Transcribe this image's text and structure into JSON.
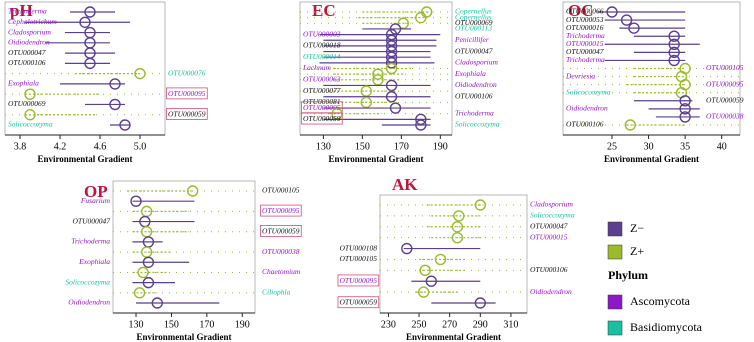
{
  "chart_data": [
    {
      "type": "dot-range",
      "title": "pH",
      "xlabel": "Environmental Gradient",
      "xlim": [
        3.65,
        5.25
      ],
      "xticks": [
        3.8,
        4.2,
        4.6,
        {
          "value": 5.0,
          "label": "5.0"
        }
      ],
      "rows": [
        {
          "taxon": "Trichoderma",
          "phylum": "Ascomycota",
          "side": "left",
          "group": "Z−",
          "value": 4.5,
          "low": 4.3,
          "high": 4.75
        },
        {
          "taxon": "Cephalotrichum",
          "phylum": "Ascomycota",
          "side": "left",
          "group": "Z−",
          "value": 4.45,
          "low": 3.85,
          "high": 4.9
        },
        {
          "taxon": "Cladosporium",
          "phylum": "Ascomycota",
          "side": "left",
          "group": "Z−",
          "value": 4.5,
          "low": 4.25,
          "high": 4.7
        },
        {
          "taxon": "Oidiodendron",
          "phylum": "Ascomycota",
          "side": "left",
          "group": "Z−",
          "value": 4.5,
          "low": 4.05,
          "high": 4.7
        },
        {
          "taxon": "OTU000047",
          "phylum": null,
          "side": "left",
          "group": "Z−",
          "value": 4.5,
          "low": 4.25,
          "high": 4.75
        },
        {
          "taxon": "OTU000106",
          "phylum": null,
          "side": "left",
          "group": "Z−",
          "value": 4.5,
          "low": 4.25,
          "high": 4.7
        },
        {
          "taxon": "OTU000076",
          "phylum": "Basidiomycota",
          "side": "right",
          "group": "Z+",
          "value": 5.0,
          "low": 4.35,
          "high": 5.0
        },
        {
          "taxon": "Exophiala",
          "phylum": "Ascomycota",
          "side": "left",
          "group": "Z−",
          "value": 4.75,
          "low": 4.2,
          "high": 4.85
        },
        {
          "taxon": "OTU000095",
          "phylum": "Ascomycota",
          "side": "right",
          "group": "Z+",
          "value": 3.9,
          "low": 3.85,
          "high": 4.6,
          "boxed": true
        },
        {
          "taxon": "OTU000069",
          "phylum": null,
          "side": "left",
          "group": "Z−",
          "value": 4.75,
          "low": 4.45,
          "high": 4.85
        },
        {
          "taxon": "OTU000059",
          "phylum": null,
          "side": "right",
          "group": "Z+",
          "value": 3.9,
          "low": 3.85,
          "high": 4.55,
          "boxed": true
        },
        {
          "taxon": "Solicoccozyma",
          "phylum": "Basidiomycota",
          "side": "left",
          "group": "Z−",
          "value": 4.85,
          "low": 4.7,
          "high": 4.9
        }
      ]
    },
    {
      "type": "dot-range",
      "title": "EC",
      "xlabel": "Environmental Gradient",
      "xlim": [
        118,
        196
      ],
      "xticks": [
        130,
        150,
        170,
        190
      ],
      "rows": [
        {
          "taxon": "Copernellus",
          "phylum": "Basidiomycota",
          "side": "right",
          "group": "Z+",
          "value": 183,
          "low": 150,
          "high": 185
        },
        {
          "taxon": "Copernellus",
          "phylum": "Basidiomycota",
          "side": "right",
          "group": "Z+",
          "value": 180,
          "low": 148,
          "high": 183
        },
        {
          "taxon": "OTU000069",
          "phylum": null,
          "side": "right",
          "group": "Z+",
          "value": 171,
          "low": 150,
          "high": 175
        },
        {
          "taxon": "OTU000113",
          "phylum": "Basidiomycota",
          "side": "right",
          "group": "Z−",
          "value": 167,
          "low": 150,
          "high": 175
        },
        {
          "taxon": "OTU000003",
          "phylum": "Ascomycota",
          "side": "left",
          "group": "Z−",
          "value": 165,
          "low": 128,
          "high": 190
        },
        {
          "taxon": "Penicillifer",
          "phylum": "Ascomycota",
          "side": "right",
          "group": "Z−",
          "value": 165,
          "low": 130,
          "high": 188
        },
        {
          "taxon": "OTU000018",
          "phylum": null,
          "side": "left",
          "group": "Z−",
          "value": 165,
          "low": 130,
          "high": 188
        },
        {
          "taxon": "OTU000047",
          "phylum": null,
          "side": "right",
          "group": "Z−",
          "value": 165,
          "low": 130,
          "high": 185
        },
        {
          "taxon": "OTU000014",
          "phylum": "Basidiomycota",
          "side": "left",
          "group": "Z−",
          "value": 165,
          "low": 130,
          "high": 185
        },
        {
          "taxon": "Cladosporium",
          "phylum": "Ascomycota",
          "side": "right",
          "group": "Z−",
          "value": 165,
          "low": 128,
          "high": 187
        },
        {
          "taxon": "Lachnum",
          "phylum": "Ascomycota",
          "side": "left",
          "group": "Z+",
          "value": 165,
          "low": 135,
          "high": 175
        },
        {
          "taxon": "Exophiala",
          "phylum": "Ascomycota",
          "side": "right",
          "group": "Z+",
          "value": 158,
          "low": 135,
          "high": 172
        },
        {
          "taxon": "OTU000063",
          "phylum": "Ascomycota",
          "side": "left",
          "group": "Z+",
          "value": 158,
          "low": 135,
          "high": 170
        },
        {
          "taxon": "Oidiodendron",
          "phylum": "Ascomycota",
          "side": "right",
          "group": "Z−",
          "value": 165,
          "low": 130,
          "high": 185
        },
        {
          "taxon": "OTU000077",
          "phylum": null,
          "side": "left",
          "group": "Z+",
          "value": 152,
          "low": 133,
          "high": 167
        },
        {
          "taxon": "OTU000106",
          "phylum": null,
          "side": "right",
          "group": "Z−",
          "value": 165,
          "low": 130,
          "high": 185
        },
        {
          "taxon": "OTU000081",
          "phylum": null,
          "side": "left",
          "group": "Z+",
          "value": 152,
          "low": 133,
          "high": 165
        },
        {
          "taxon": "OTU000095",
          "phylum": "Ascomycota",
          "side": "left",
          "group": "Z−",
          "value": 167,
          "low": 130,
          "high": 185,
          "boxed": true
        },
        {
          "taxon": "Trichoderma",
          "phylum": "Ascomycota",
          "side": "right",
          "group": "Z+",
          "value": 137,
          "low": 133,
          "high": 160
        },
        {
          "taxon": "OTU000059",
          "phylum": null,
          "side": "left",
          "group": "Z−",
          "value": 180,
          "low": 130,
          "high": 185,
          "boxed": true
        },
        {
          "taxon": "Solicoccozyma",
          "phylum": "Basidiomycota",
          "side": "right",
          "group": "Z−",
          "value": 180,
          "low": 160,
          "high": 185
        }
      ]
    },
    {
      "type": "dot-range",
      "title": "OC",
      "xlabel": "Environmental Gradient",
      "xlim": [
        18.3,
        42.5
      ],
      "xticks": [
        25,
        30,
        35,
        40
      ],
      "rows": [
        {
          "taxon": "OTU000066",
          "phylum": null,
          "side": "left",
          "group": "Z−",
          "value": 25,
          "low": 23,
          "high": 35
        },
        {
          "taxon": "OTU000053",
          "phylum": null,
          "side": "left",
          "group": "Z−",
          "value": 27,
          "low": 24,
          "high": 35
        },
        {
          "taxon": "OTU000016",
          "phylum": null,
          "side": "left",
          "group": "Z−",
          "value": 28,
          "low": 26,
          "high": 35
        },
        {
          "taxon": "Trichoderma",
          "phylum": "Ascomycota",
          "side": "left",
          "group": "Z−",
          "value": 33.5,
          "low": 28,
          "high": 35
        },
        {
          "taxon": "OTU000015",
          "phylum": "Ascomycota",
          "side": "left",
          "group": "Z−",
          "value": 33.5,
          "low": 24,
          "high": 37
        },
        {
          "taxon": "OTU000047",
          "phylum": null,
          "side": "left",
          "group": "Z−",
          "value": 33.5,
          "low": 28,
          "high": 35
        },
        {
          "taxon": "Trichoderma",
          "phylum": "Ascomycota",
          "side": "left",
          "group": "Z−",
          "value": 33.5,
          "low": 24,
          "high": 35
        },
        {
          "taxon": "OTU000105",
          "phylum": "Ascomycota",
          "side": "right",
          "group": "Z+",
          "value": 35,
          "low": 28,
          "high": 35
        },
        {
          "taxon": "Devriesia",
          "phylum": "Ascomycota",
          "side": "left",
          "group": "Z+",
          "value": 34.5,
          "low": 28,
          "high": 35
        },
        {
          "taxon": "OTU000095",
          "phylum": "Ascomycota",
          "side": "right",
          "group": "Z+",
          "value": 35,
          "low": 27,
          "high": 35
        },
        {
          "taxon": "Solicoccozyma",
          "phylum": "Basidiomycota",
          "side": "left",
          "group": "Z+",
          "value": 34.5,
          "low": 28,
          "high": 35
        },
        {
          "taxon": "OTU000059",
          "phylum": null,
          "side": "right",
          "group": "Z−",
          "value": 35,
          "low": 28,
          "high": 36
        },
        {
          "taxon": "Oidiodendron",
          "phylum": "Ascomycota",
          "side": "left",
          "group": "Z−",
          "value": 35,
          "low": 30,
          "high": 37
        },
        {
          "taxon": "OTU000038",
          "phylum": "Ascomycota",
          "side": "right",
          "group": "Z−",
          "value": 35,
          "low": 31,
          "high": 37
        },
        {
          "taxon": "OTU000106",
          "phylum": null,
          "side": "left",
          "group": "Z+",
          "value": 27.5,
          "low": 27,
          "high": 35
        }
      ]
    },
    {
      "type": "dot-range",
      "title": "OP",
      "xlabel": "Environmental Gradient",
      "xlim": [
        117,
        197.2
      ],
      "xticks": [
        130,
        150,
        170,
        190
      ],
      "rows": [
        {
          "taxon": "OTU000105",
          "phylum": null,
          "side": "right",
          "group": "Z+",
          "value": 162,
          "low": 125,
          "high": 162
        },
        {
          "taxon": "Fusarium",
          "phylum": "Ascomycota",
          "side": "left",
          "group": "Z−",
          "value": 130,
          "low": 128,
          "high": 163
        },
        {
          "taxon": "OTU000095",
          "phylum": "Ascomycota",
          "side": "right",
          "group": "Z+",
          "value": 136,
          "low": 128,
          "high": 160,
          "boxed": true
        },
        {
          "taxon": "OTU000047",
          "phylum": null,
          "side": "left",
          "group": "Z−",
          "value": 135,
          "low": 128,
          "high": 163
        },
        {
          "taxon": "OTU000059",
          "phylum": null,
          "side": "right",
          "group": "Z+",
          "value": 136,
          "low": 128,
          "high": 160,
          "boxed": true
        },
        {
          "taxon": "Trichoderma",
          "phylum": "Ascomycota",
          "side": "left",
          "group": "Z−",
          "value": 137,
          "low": 128,
          "high": 145
        },
        {
          "taxon": "OTU000038",
          "phylum": "Ascomycota",
          "side": "right",
          "group": "Z+",
          "value": 136,
          "low": 128,
          "high": 150
        },
        {
          "taxon": "Exophiala",
          "phylum": "Ascomycota",
          "side": "left",
          "group": "Z−",
          "value": 137,
          "low": 128,
          "high": 160
        },
        {
          "taxon": "Chaetomium",
          "phylum": "Ascomycota",
          "side": "right",
          "group": "Z+",
          "value": 134,
          "low": 128,
          "high": 148
        },
        {
          "taxon": "Solicoccozyma",
          "phylum": "Basidiomycota",
          "side": "left",
          "group": "Z−",
          "value": 137,
          "low": 128,
          "high": 152
        },
        {
          "taxon": "Ciliophla",
          "phylum": "Basidiomycota",
          "side": "right",
          "group": "Z+",
          "value": 132,
          "low": 128,
          "high": 142
        },
        {
          "taxon": "Oidiodendron",
          "phylum": "Ascomycota",
          "side": "left",
          "group": "Z−",
          "value": 142,
          "low": 130,
          "high": 177
        }
      ]
    },
    {
      "type": "dot-range",
      "title": "AK",
      "xlabel": "Environmental Gradient",
      "xlim": [
        224.5,
        320.5
      ],
      "xticks": [
        230,
        250,
        270,
        290,
        310
      ],
      "rows": [
        {
          "taxon": "Cladosporium",
          "phylum": "Ascomycota",
          "side": "right",
          "group": "Z+",
          "value": 290,
          "low": 255,
          "high": 292
        },
        {
          "taxon": "Solicoccozyma",
          "phylum": "Basidiomycota",
          "side": "right",
          "group": "Z+",
          "value": 276,
          "low": 258,
          "high": 290
        },
        {
          "taxon": "OTU000047",
          "phylum": null,
          "side": "right",
          "group": "Z+",
          "value": 275,
          "low": 255,
          "high": 290
        },
        {
          "taxon": "OTU000015",
          "phylum": "Ascomycota",
          "side": "right",
          "group": "Z+",
          "value": 275,
          "low": 258,
          "high": 292
        },
        {
          "taxon": "OTU000108",
          "phylum": null,
          "side": "left",
          "group": "Z−",
          "value": 242,
          "low": 240,
          "high": 290
        },
        {
          "taxon": "OTU000105",
          "phylum": null,
          "side": "left",
          "group": "Z+",
          "value": 264,
          "low": 250,
          "high": 280
        },
        {
          "taxon": "OTU000106",
          "phylum": null,
          "side": "right",
          "group": "Z+",
          "value": 254,
          "low": 250,
          "high": 280
        },
        {
          "taxon": "OTU000095",
          "phylum": "Ascomycota",
          "side": "left",
          "group": "Z−",
          "value": 258,
          "low": 245,
          "high": 290,
          "boxed": true
        },
        {
          "taxon": "Oidiodendron",
          "phylum": "Ascomycota",
          "side": "right",
          "group": "Z+",
          "value": 253,
          "low": 248,
          "high": 275
        },
        {
          "taxon": "OTU000059",
          "phylum": null,
          "side": "left",
          "group": "Z−",
          "value": 290,
          "low": 258,
          "high": 300,
          "boxed": true
        }
      ]
    }
  ],
  "legend": {
    "groups": [
      {
        "name": "Z−",
        "color": "#5c3f8f"
      },
      {
        "name": "Z+",
        "color": "#9bbb2d"
      }
    ],
    "phylum_title": "Phylum",
    "phyla": [
      {
        "name": "Ascomycota",
        "color": "#8e17cc"
      },
      {
        "name": "Basidiomycota",
        "color": "#17c0a0"
      }
    ]
  }
}
